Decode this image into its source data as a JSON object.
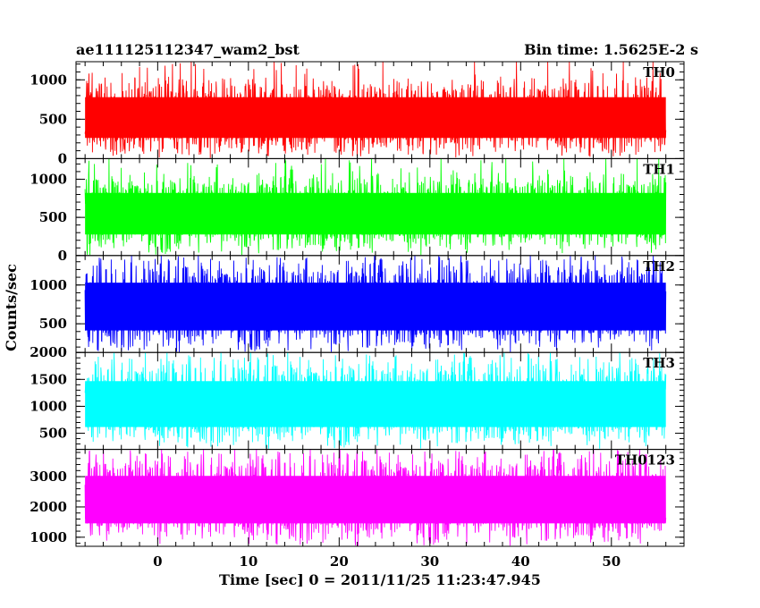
{
  "title_left": "ae111125112347_wam2_bst",
  "title_right": "Bin time: 1.5625E-2 s",
  "chart_data": {
    "type": "line",
    "xlabel": "Time [sec] 0 = 2011/11/25 11:23:47.945",
    "ylabel": "Counts/sec",
    "xlim": [
      -9,
      58
    ],
    "x_range": [
      -8,
      56
    ],
    "xticks": [
      0,
      10,
      20,
      30,
      40,
      50
    ],
    "panels": [
      {
        "name": "TH0",
        "color": "#ff0000",
        "ylim": [
          0,
          1230
        ],
        "yticks": [
          0,
          500,
          1000
        ],
        "band": [
          60,
          1000
        ],
        "median": 510
      },
      {
        "name": "TH1",
        "color": "#00ff00",
        "ylim": [
          0,
          1270
        ],
        "yticks": [
          0,
          500,
          1000
        ],
        "band": [
          60,
          1050
        ],
        "median": 540
      },
      {
        "name": "TH2",
        "color": "#0000ff",
        "ylim": [
          130,
          1380
        ],
        "yticks": [
          500,
          1000
        ],
        "band": [
          180,
          1300
        ],
        "median": 700
      },
      {
        "name": "TH3",
        "color": "#00ffff",
        "ylim": [
          200,
          2000
        ],
        "yticks": [
          500,
          1000,
          1500,
          2000
        ],
        "band": [
          300,
          1850
        ],
        "median": 1000
      },
      {
        "name": "TH0123",
        "color": "#ff00ff",
        "ylim": [
          700,
          3900
        ],
        "yticks": [
          1000,
          2000,
          3000
        ],
        "band": [
          850,
          3700
        ],
        "median": 2200
      }
    ]
  }
}
